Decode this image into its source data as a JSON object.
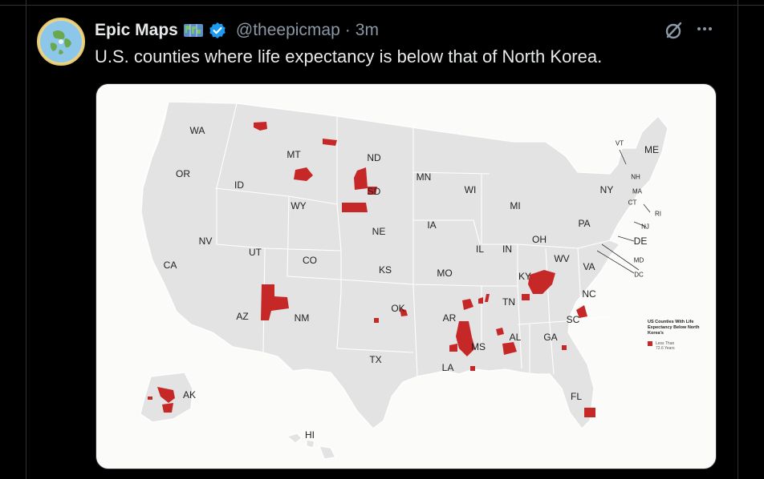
{
  "post": {
    "display_name": "Epic Maps",
    "handle": "@theepicmap",
    "separator": "·",
    "time": "3m",
    "text": "U.S. counties where life expectancy is below that of North Korea."
  },
  "icons": {
    "avatar": "flat-earth-map-avatar",
    "badge_emoji": "world-map-icon",
    "verified": "verified-badge-icon",
    "grok": "grok-icon",
    "more": "more-options-icon"
  },
  "colors": {
    "background": "#000000",
    "text": "#e7e9ea",
    "muted": "#8b98a5",
    "verified": "#1d9bf0",
    "highlight": "#c62828",
    "map_land": "#e3e3e3",
    "map_bg": "#fbfbf9"
  },
  "map": {
    "state_labels": {
      "WA": "WA",
      "OR": "OR",
      "CA": "CA",
      "ID": "ID",
      "NV": "NV",
      "MT": "MT",
      "WY": "WY",
      "UT": "UT",
      "AZ": "AZ",
      "CO": "CO",
      "NM": "NM",
      "ND": "ND",
      "SD": "SD",
      "NE": "NE",
      "KS": "KS",
      "OK": "OK",
      "TX": "TX",
      "MN": "MN",
      "IA": "IA",
      "MO": "MO",
      "AR": "AR",
      "LA": "LA",
      "WI": "WI",
      "IL": "IL",
      "MS": "MS",
      "MI": "MI",
      "IN": "IN",
      "OH": "OH",
      "KY": "KY",
      "TN": "TN",
      "AL": "AL",
      "GA": "GA",
      "FL": "FL",
      "SC": "SC",
      "NC": "NC",
      "VA": "VA",
      "WV": "WV",
      "PA": "PA",
      "NY": "NY",
      "VT": "VT",
      "NH": "NH",
      "ME": "ME",
      "MA": "MA",
      "CT": "CT",
      "RI": "RI",
      "NJ": "NJ",
      "DE": "DE",
      "MD": "MD",
      "DC": "DC",
      "AK": "AK",
      "HI": "HI"
    },
    "legend": {
      "title": "US Counties With Life Expectancy Below North Korea's",
      "item": "Less Than 72.6 Years"
    }
  }
}
